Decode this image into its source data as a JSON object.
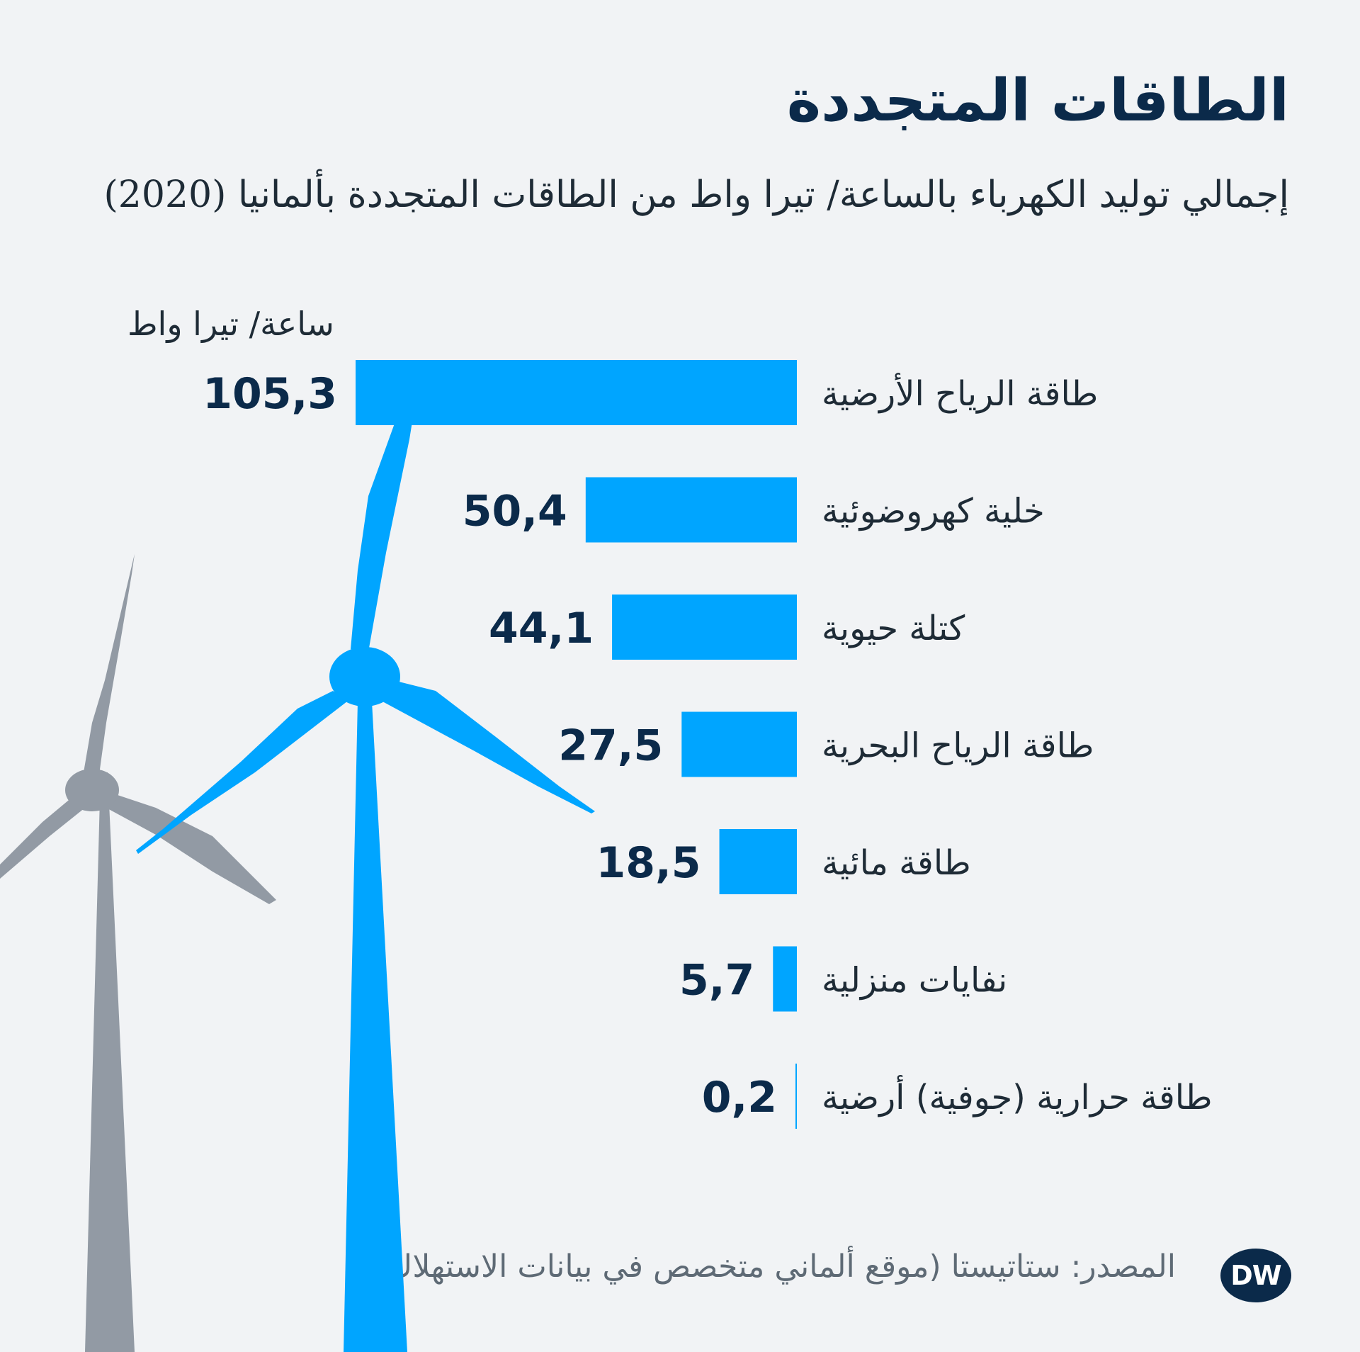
{
  "title": "الطاقات المتجددة",
  "subtitle": "إجمالي توليد الكهرباء بالساعة/ تيرا واط من الطاقات المتجددة بألمانيا (2020)",
  "source": "المصدر: ستاتيستا (موقع ألماني متخصص في بيانات الاستهلاك)",
  "logo_text": "DW",
  "colors": {
    "bar": "#00a5ff",
    "turbine_front": "#00a5ff",
    "turbine_back": "#929aa4",
    "text_dark": "#0b2a4a",
    "background": "#f1f3f5"
  },
  "chart_data": {
    "type": "bar",
    "orientation": "horizontal",
    "unit_label": "ساعة/ تيرا واط",
    "categories": [
      "طاقة الرياح الأرضية",
      "خلية كهروضوئية",
      "كتلة حيوية",
      "طاقة الرياح البحرية",
      "طاقة مائية",
      "نفايات منزلية",
      "طاقة حرارية (جوفية) أرضية"
    ],
    "values": [
      105.3,
      50.4,
      44.1,
      27.5,
      18.5,
      5.7,
      0.2
    ],
    "value_labels": [
      "105,3",
      "50,4",
      "44,1",
      "27,5",
      "18,5",
      "5,7",
      "0,2"
    ],
    "xlim": [
      0,
      105.3
    ],
    "grid": false,
    "legend": "none"
  }
}
